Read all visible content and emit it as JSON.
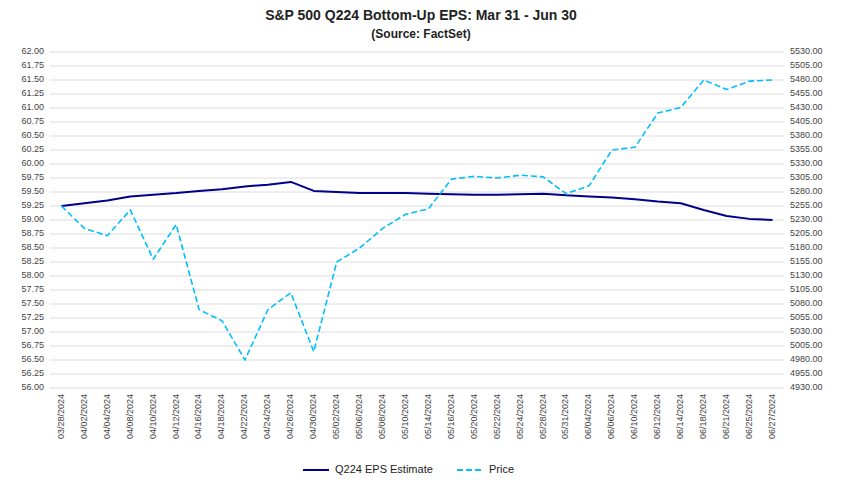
{
  "chart_data": {
    "type": "line",
    "title": "S&P 500 Q224 Bottom-Up EPS: Mar 31 - Jun 30",
    "subtitle": "(Source: FactSet)",
    "categories": [
      "03/28/2024",
      "04/02/2024",
      "04/04/2024",
      "04/08/2024",
      "04/10/2024",
      "04/12/2024",
      "04/16/2024",
      "04/18/2024",
      "04/22/2024",
      "04/24/2024",
      "04/26/2024",
      "04/30/2024",
      "05/02/2024",
      "05/06/2024",
      "05/08/2024",
      "05/10/2024",
      "05/14/2024",
      "05/16/2024",
      "05/20/2024",
      "05/22/2024",
      "05/24/2024",
      "05/28/2024",
      "05/31/2024",
      "06/04/2024",
      "06/06/2024",
      "06/10/2024",
      "06/12/2024",
      "06/14/2024",
      "06/18/2024",
      "06/21/2024",
      "06/25/2024",
      "06/27/2024"
    ],
    "series": [
      {
        "name": "Q224 EPS Estimate",
        "color": "#00008B",
        "line_style": "solid",
        "values": [
          59.25,
          59.3,
          59.35,
          59.42,
          59.45,
          59.48,
          59.52,
          59.55,
          59.6,
          59.63,
          59.68,
          59.52,
          59.5,
          59.48,
          59.48,
          59.48,
          59.47,
          59.46,
          59.45,
          59.45,
          59.46,
          59.47,
          59.44,
          59.42,
          59.4,
          59.37,
          59.33,
          59.3,
          59.18,
          59.07,
          59.02,
          59.0
        ]
      },
      {
        "name": "Price",
        "color": "#00BFFF",
        "line_style": "dashed",
        "axis": "y2",
        "values": [
          5255.0,
          5215.0,
          5202.0,
          5248.0,
          5160.0,
          5222.0,
          5070.0,
          5050.0,
          4980.0,
          5070.0,
          5100.0,
          4995.0,
          5155.0,
          5180.0,
          5215.0,
          5240.0,
          5250.0,
          5303.0,
          5308.0,
          5305.0,
          5310.0,
          5307.0,
          5277.0,
          5291.0,
          5355.0,
          5360.0,
          5421.0,
          5431.0,
          5480.0,
          5463.0,
          5478.0,
          5480.0
        ]
      }
    ],
    "ylim": [
      56,
      62
    ],
    "yticks": [
      {
        "value": 56,
        "label": "56.00"
      },
      56.25,
      {
        "value": 56.5,
        "label": "56.50"
      },
      56.75,
      {
        "value": 57,
        "label": "57.00"
      },
      57.25,
      {
        "value": 57.5,
        "label": "57.50"
      },
      57.75,
      {
        "value": 58,
        "label": "58.00"
      },
      58.25,
      {
        "value": 58.5,
        "label": "58.50"
      },
      58.75,
      {
        "value": 59,
        "label": "59.00"
      },
      59.25,
      {
        "value": 59.5,
        "label": "59.50"
      },
      59.75,
      {
        "value": 60,
        "label": "60.00"
      },
      60.25,
      {
        "value": 60.5,
        "label": "60.50"
      },
      60.75,
      {
        "value": 61,
        "label": "61.00"
      },
      61.25,
      {
        "value": 61.5,
        "label": "61.50"
      },
      61.75,
      {
        "value": 62,
        "label": "62.00"
      }
    ],
    "y2lim": [
      4930,
      5530
    ],
    "y2ticks": [
      {
        "value": 4930,
        "label": "4930.00"
      },
      {
        "value": 4955,
        "label": "4955.00"
      },
      {
        "value": 4980,
        "label": "4980.00"
      },
      {
        "value": 5005,
        "label": "5005.00"
      },
      {
        "value": 5030,
        "label": "5030.00"
      },
      {
        "value": 5055,
        "label": "5055.00"
      },
      {
        "value": 5080,
        "label": "5080.00"
      },
      {
        "value": 5105,
        "label": "5105.00"
      },
      {
        "value": 5130,
        "label": "5130.00"
      },
      {
        "value": 5155,
        "label": "5155.00"
      },
      {
        "value": 5180,
        "label": "5180.00"
      },
      {
        "value": 5205,
        "label": "5205.00"
      },
      {
        "value": 5230,
        "label": "5230.00"
      },
      {
        "value": 5255,
        "label": "5255.00"
      },
      {
        "value": 5280,
        "label": "5280.00"
      },
      {
        "value": 5305,
        "label": "5305.00"
      },
      {
        "value": 5330,
        "label": "5330.00"
      },
      {
        "value": 5355,
        "label": "5355.00"
      },
      {
        "value": 5380,
        "label": "5380.00"
      },
      {
        "value": 5405,
        "label": "5405.00"
      },
      {
        "value": 5430,
        "label": "5430.00"
      },
      {
        "value": 5455,
        "label": "5455.00"
      },
      {
        "value": 5480,
        "label": "5480.00"
      },
      {
        "value": 5505,
        "label": "5505.00"
      },
      {
        "value": 5530,
        "label": "5530.00"
      }
    ],
    "grid": true,
    "legend": "bottom"
  }
}
